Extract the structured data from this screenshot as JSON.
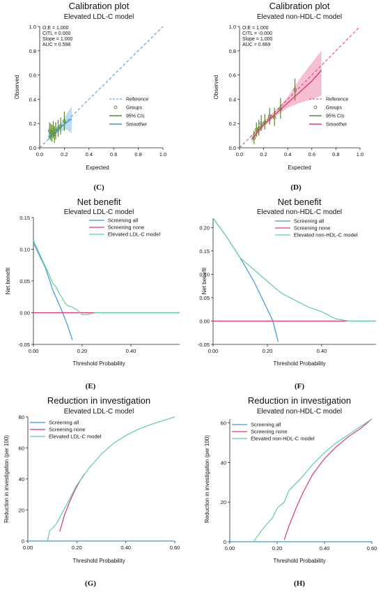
{
  "panels": {
    "C": {
      "label": "(C)",
      "title": "Calibration plot",
      "subtitle": "Elevated LDL-C model",
      "xlabel": "Expected",
      "ylabel": "Observed",
      "stats": [
        "O:E = 1.000",
        "CITL = 0.000",
        "Slope = 1.000",
        "AUC = 0.598"
      ],
      "legend": [
        "Reference",
        "Groups",
        "95% CIs",
        "Smoother"
      ]
    },
    "D": {
      "label": "(D)",
      "title": "Calibration plot",
      "subtitle": "Elevated non-HDL-C model",
      "xlabel": "Expected",
      "ylabel": "Observed",
      "stats": [
        "O:E = 1.000",
        "CITL = -0.000",
        "Slope = 1.000",
        "AUC = 0.669"
      ],
      "legend": [
        "Reference",
        "Groups",
        "95% CIs",
        "Smoother"
      ]
    },
    "E": {
      "label": "(E)",
      "title": "Net benefit",
      "subtitle": "Elevated LDL-C model",
      "xlabel": "Threshold Probability",
      "ylabel": "Net benefit",
      "legend": [
        "Screening all",
        "Screening none",
        "Elevated LDL-C model"
      ]
    },
    "F": {
      "label": "(F)",
      "title": "Net benefit",
      "subtitle": "Elevated non-HDL-C model",
      "xlabel": "Threshold Probability",
      "ylabel": "Net benefit",
      "legend": [
        "Screening all",
        "Screening none",
        "Elevated non-HDL-C model"
      ]
    },
    "G": {
      "label": "(G)",
      "title": "Reduction in investigation",
      "subtitle": "Elevated LDL-C model",
      "xlabel": "Threshold Probability",
      "ylabel": "Reduction in investigation (per 100)",
      "legend": [
        "Screening all",
        "Screening none",
        "Elevated LDL-C model"
      ]
    },
    "H": {
      "label": "(H)",
      "title": "Reduction in investigation",
      "subtitle": "Elevated non-HDL-C model",
      "xlabel": "Threshold Probability",
      "ylabel": "Reduction in investigation (per 100)",
      "legend": [
        "Screening all",
        "Screening none",
        "Elevated non-HDL-C model"
      ]
    }
  },
  "colors": {
    "blue": "#3f93d8",
    "red": "#d83a6a",
    "green": "#5fcf9a",
    "olive": "#56892c",
    "pink_band": "#f3aac2",
    "blue_band": "#a7cff0"
  },
  "chart_data": [
    {
      "id": "C",
      "type": "line",
      "title": "Calibration plot",
      "subtitle": "Elevated LDL-C model",
      "xlabel": "Expected",
      "ylabel": "Observed",
      "xlim": [
        0,
        1
      ],
      "ylim": [
        0,
        1
      ],
      "x_ticks": [
        "0.0",
        "0.2",
        "0.4",
        "0.6",
        "0.8",
        "1.0"
      ],
      "y_ticks": [
        "0.0",
        "0.2",
        "0.4",
        "0.6",
        "0.8",
        "1.0"
      ],
      "legend_position": "bottom-right",
      "series": [
        {
          "name": "Reference",
          "style": "dashed",
          "x": [
            0,
            1
          ],
          "y": [
            0,
            1
          ]
        },
        {
          "name": "Groups",
          "style": "points",
          "x": [
            0.08,
            0.09,
            0.1,
            0.11,
            0.12,
            0.13,
            0.15,
            0.17,
            0.2
          ],
          "y": [
            0.14,
            0.13,
            0.12,
            0.15,
            0.11,
            0.14,
            0.16,
            0.18,
            0.22
          ],
          "ci_low": [
            0.07,
            0.06,
            0.05,
            0.08,
            0.04,
            0.07,
            0.09,
            0.11,
            0.14
          ],
          "ci_high": [
            0.21,
            0.2,
            0.19,
            0.22,
            0.18,
            0.21,
            0.23,
            0.25,
            0.3
          ]
        },
        {
          "name": "Smoother",
          "style": "line",
          "x": [
            0.07,
            0.12,
            0.17,
            0.22,
            0.26
          ],
          "y": [
            0.09,
            0.12,
            0.17,
            0.21,
            0.24
          ],
          "band_low": [
            0.07,
            0.1,
            0.14,
            0.15,
            0.12
          ],
          "band_high": [
            0.11,
            0.14,
            0.2,
            0.28,
            0.34
          ]
        }
      ]
    },
    {
      "id": "D",
      "type": "line",
      "title": "Calibration plot",
      "subtitle": "Elevated non-HDL-C model",
      "xlabel": "Expected",
      "ylabel": "Observed",
      "xlim": [
        0,
        1
      ],
      "ylim": [
        0,
        1
      ],
      "x_ticks": [
        "0.0",
        "0.2",
        "0.4",
        "0.6",
        "0.8",
        "1.0"
      ],
      "y_ticks": [
        "0.0",
        "0.2",
        "0.4",
        "0.6",
        "0.8",
        "1.0"
      ],
      "legend_position": "bottom-right",
      "series": [
        {
          "name": "Reference",
          "style": "dashed",
          "x": [
            0,
            1
          ],
          "y": [
            0,
            1
          ]
        },
        {
          "name": "Groups",
          "style": "points",
          "x": [
            0.12,
            0.14,
            0.16,
            0.18,
            0.21,
            0.25,
            0.29,
            0.34,
            0.46
          ],
          "y": [
            0.08,
            0.15,
            0.16,
            0.2,
            0.21,
            0.26,
            0.25,
            0.32,
            0.48
          ],
          "ci_low": [
            0.03,
            0.09,
            0.1,
            0.14,
            0.15,
            0.19,
            0.18,
            0.24,
            0.39
          ],
          "ci_high": [
            0.14,
            0.21,
            0.23,
            0.27,
            0.28,
            0.33,
            0.33,
            0.41,
            0.57
          ]
        },
        {
          "name": "Smoother",
          "style": "line",
          "x": [
            0.1,
            0.2,
            0.3,
            0.4,
            0.5,
            0.6,
            0.68
          ],
          "y": [
            0.07,
            0.19,
            0.28,
            0.37,
            0.46,
            0.55,
            0.64
          ],
          "band_low": [
            0.04,
            0.17,
            0.26,
            0.33,
            0.37,
            0.4,
            0.43
          ],
          "band_high": [
            0.1,
            0.22,
            0.31,
            0.42,
            0.57,
            0.7,
            0.8
          ]
        }
      ]
    },
    {
      "id": "E",
      "type": "line",
      "title": "Net benefit",
      "subtitle": "Elevated LDL-C model",
      "xlabel": "Threshold Probability",
      "ylabel": "Net benefit",
      "xlim": [
        0,
        0.6
      ],
      "ylim": [
        -0.05,
        0.15
      ],
      "x_ticks": [
        "0.00",
        "0.20",
        "0.40"
      ],
      "y_ticks": [
        "-0.05",
        "0.00",
        "0.05",
        "0.10",
        "0.15"
      ],
      "legend_position": "top-right",
      "series": [
        {
          "name": "Screening all",
          "x": [
            0,
            0.05,
            0.08,
            0.1,
            0.12,
            0.14,
            0.16
          ],
          "y": [
            0.11,
            0.07,
            0.035,
            0.018,
            0.0,
            -0.02,
            -0.043
          ]
        },
        {
          "name": "Screening none",
          "x": [
            0,
            0.6
          ],
          "y": [
            0,
            0
          ]
        },
        {
          "name": "Elevated LDL-C model",
          "x": [
            0,
            0.02,
            0.04,
            0.06,
            0.08,
            0.09,
            0.1,
            0.11,
            0.12,
            0.13,
            0.14,
            0.16,
            0.18,
            0.2,
            0.22,
            0.24,
            0.26,
            0.6
          ],
          "y": [
            0.114,
            0.097,
            0.08,
            0.064,
            0.046,
            0.042,
            0.035,
            0.028,
            0.022,
            0.015,
            0.011,
            0.009,
            0.004,
            -0.003,
            -0.003,
            -0.001,
            0.0,
            0.0
          ]
        }
      ]
    },
    {
      "id": "F",
      "type": "line",
      "title": "Net benefit",
      "subtitle": "Elevated non-HDL-C model",
      "xlabel": "Threshold Probability",
      "ylabel": "Net benefit",
      "xlim": [
        0,
        0.6
      ],
      "ylim": [
        -0.05,
        0.22
      ],
      "x_ticks": [
        "0.00",
        "0.20",
        "0.40"
      ],
      "y_ticks": [
        "-0.05",
        "0.00",
        "0.05",
        "0.10",
        "0.15",
        "0.20"
      ],
      "legend_position": "top-right",
      "series": [
        {
          "name": "Screening all",
          "x": [
            0,
            0.05,
            0.1,
            0.15,
            0.2,
            0.22,
            0.24
          ],
          "y": [
            0.22,
            0.18,
            0.135,
            0.085,
            0.025,
            0.0,
            -0.045
          ]
        },
        {
          "name": "Screening none",
          "x": [
            0,
            0.6
          ],
          "y": [
            0,
            0
          ]
        },
        {
          "name": "Elevated non-HDL-C model",
          "x": [
            0,
            0.05,
            0.1,
            0.15,
            0.2,
            0.25,
            0.3,
            0.35,
            0.4,
            0.45,
            0.5,
            0.55,
            0.6
          ],
          "y": [
            0.22,
            0.18,
            0.135,
            0.11,
            0.085,
            0.06,
            0.045,
            0.03,
            0.02,
            0.005,
            0.0,
            0.0,
            0.0
          ]
        }
      ]
    },
    {
      "id": "G",
      "type": "line",
      "title": "Reduction in investigation",
      "subtitle": "Elevated LDL-C model",
      "xlabel": "Threshold Probability",
      "ylabel": "Reduction in investigation (per 100)",
      "xlim": [
        0,
        0.6
      ],
      "ylim": [
        0,
        80
      ],
      "x_ticks": [
        "0.00",
        "0.20",
        "0.40",
        "0.60"
      ],
      "y_ticks": [
        "0",
        "20",
        "40",
        "60",
        "80"
      ],
      "legend_position": "top-left",
      "series": [
        {
          "name": "Screening all",
          "x": [
            0,
            0.6
          ],
          "y": [
            0,
            0
          ]
        },
        {
          "name": "Screening none",
          "x": [
            0.13,
            0.15,
            0.17,
            0.19,
            0.21,
            0.23
          ],
          "y": [
            6,
            17,
            25,
            32,
            38,
            43
          ]
        },
        {
          "name": "Elevated LDL-C model",
          "x": [
            0.08,
            0.09,
            0.1,
            0.12,
            0.14,
            0.16,
            0.18,
            0.2,
            0.25,
            0.3,
            0.35,
            0.4,
            0.45,
            0.5,
            0.55,
            0.6
          ],
          "y": [
            0,
            7,
            8,
            12,
            18,
            24,
            30,
            36,
            47,
            56,
            63,
            68,
            72,
            75,
            77.5,
            80
          ]
        }
      ]
    },
    {
      "id": "H",
      "type": "line",
      "title": "Reduction in investigation",
      "subtitle": "Elevated non-HDL-C model",
      "xlabel": "Threshold Probability",
      "ylabel": "Reduction in investigation (per 100)",
      "xlim": [
        0,
        0.6
      ],
      "ylim": [
        0,
        62
      ],
      "x_ticks": [
        "0.00",
        "0.20",
        "0.40",
        "0.60"
      ],
      "y_ticks": [
        "0",
        "20",
        "40",
        "60"
      ],
      "legend_position": "top-left",
      "series": [
        {
          "name": "Screening all",
          "x": [
            0,
            0.6
          ],
          "y": [
            0,
            0
          ]
        },
        {
          "name": "Screening none",
          "x": [
            0.23,
            0.25,
            0.28,
            0.31,
            0.35,
            0.4,
            0.45,
            0.5,
            0.55,
            0.6
          ],
          "y": [
            1,
            8,
            17,
            25,
            34,
            42,
            48,
            53,
            57,
            62
          ]
        },
        {
          "name": "Elevated non-HDL-C model",
          "x": [
            0.1,
            0.13,
            0.15,
            0.18,
            0.2,
            0.23,
            0.25,
            0.3,
            0.35,
            0.4,
            0.45,
            0.5,
            0.55,
            0.6
          ],
          "y": [
            0,
            5,
            8,
            12,
            17,
            20,
            26,
            32,
            39,
            45,
            50,
            54,
            58,
            62
          ]
        }
      ]
    }
  ]
}
